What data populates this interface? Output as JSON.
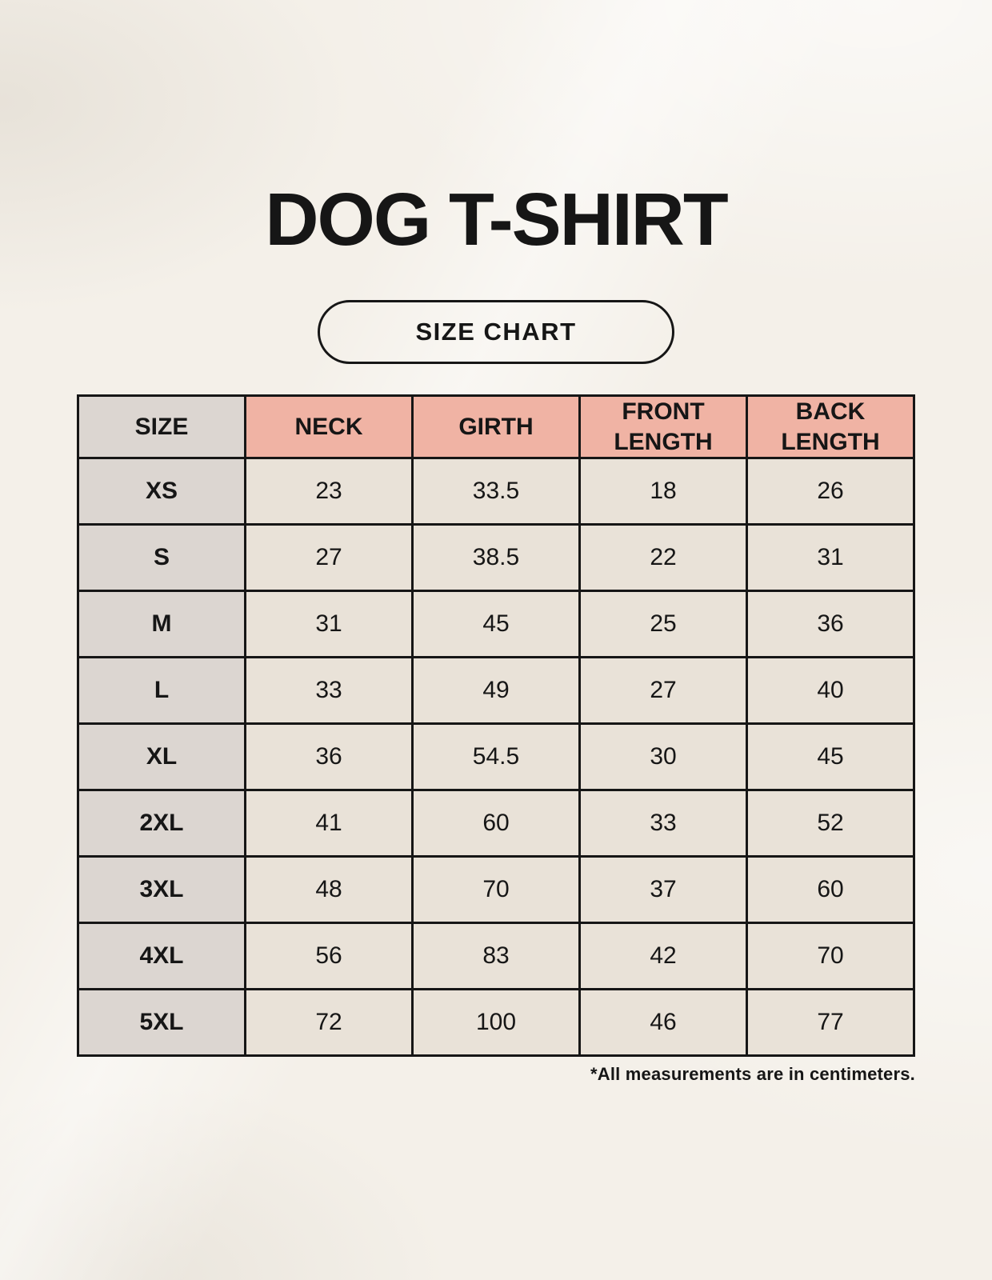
{
  "page": {
    "title": "DOG T-SHIRT",
    "size_chart_badge": "SIZE CHART",
    "footnote": "*All measurements are in centimeters."
  },
  "colors": {
    "page_background": "#f4f0e9",
    "header_accent_pink": "#f0b3a4",
    "size_column_gray": "#dcd6d1",
    "data_cell_cream": "#e9e2d8",
    "table_border_black": "#161616",
    "text_black": "#161616"
  },
  "chart_data": {
    "type": "table",
    "title": "DOG T-SHIRT",
    "subtitle": "SIZE CHART",
    "units": "centimeters",
    "columns": [
      "SIZE",
      "NECK",
      "GIRTH",
      "FRONT LENGTH",
      "BACK LENGTH"
    ],
    "rows": [
      [
        "XS",
        "23",
        "33.5",
        "18",
        "26"
      ],
      [
        "S",
        "27",
        "38.5",
        "22",
        "31"
      ],
      [
        "M",
        "31",
        "45",
        "25",
        "36"
      ],
      [
        "L",
        "33",
        "49",
        "27",
        "40"
      ],
      [
        "XL",
        "36",
        "54.5",
        "30",
        "45"
      ],
      [
        "2XL",
        "41",
        "60",
        "33",
        "52"
      ],
      [
        "3XL",
        "48",
        "70",
        "37",
        "60"
      ],
      [
        "4XL",
        "56",
        "83",
        "42",
        "70"
      ],
      [
        "5XL",
        "72",
        "100",
        "46",
        "77"
      ]
    ],
    "footnote": "*All measurements are in centimeters."
  }
}
